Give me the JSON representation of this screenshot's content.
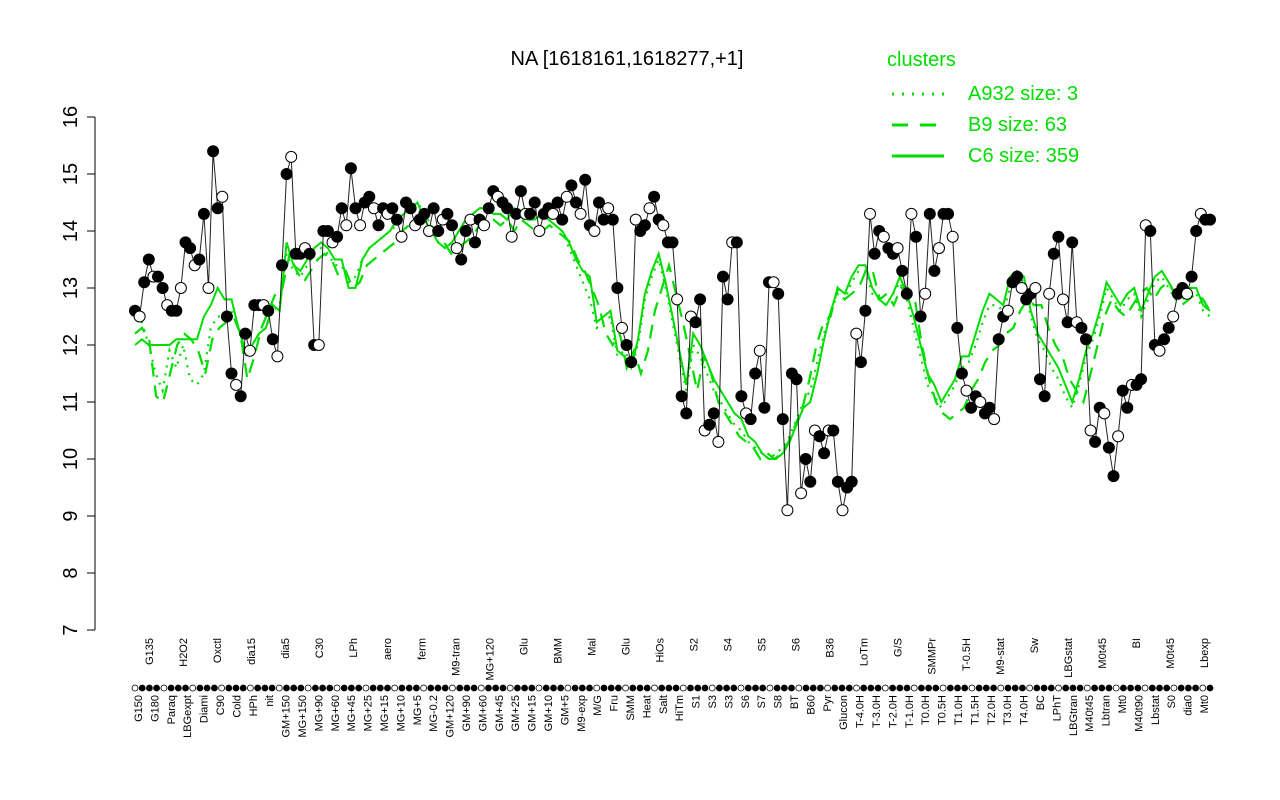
{
  "chart_data": {
    "type": "line",
    "title": "NA [1618161,1618277,+1]",
    "xlabel": "",
    "ylabel": "",
    "ylim": [
      7,
      16
    ],
    "yticks": [
      7,
      8,
      9,
      10,
      11,
      12,
      13,
      14,
      15,
      16
    ],
    "grid": false,
    "legend_position": "top-right",
    "legend": {
      "title": "clusters",
      "entries": [
        {
          "label": "A932 size: 3",
          "style": "dotted"
        },
        {
          "label": "B9 size: 63",
          "style": "dashed"
        },
        {
          "label": "C6 size: 359",
          "style": "solid"
        }
      ]
    },
    "x_tick_labels_bottom": [
      "G150",
      "G180",
      "Paraq",
      "LBGexpt",
      "Diami",
      "C90",
      "Cold",
      "HPh",
      "nit",
      "GM+150",
      "MG+150",
      "MG+90",
      "MG+60",
      "MG+45",
      "MG+25",
      "MG+15",
      "MG+10",
      "MG+5",
      "MG-0.2",
      "GM+120",
      "GM+90",
      "GM+60",
      "GM+45",
      "GM+25",
      "GM+15",
      "GM+10",
      "GM+5",
      "M9-exp",
      "M/G",
      "Fru",
      "SMM",
      "Heat",
      "Salt",
      "HiTm",
      "S1",
      "S3",
      "S3",
      "S6",
      "S7",
      "S8",
      "BT",
      "B60",
      "Pyr",
      "Glucon",
      "T-4.0H",
      "T-3.0H",
      "T-2.0H",
      "T-1.0H",
      "T0.0H",
      "T0.5H",
      "T1.0H",
      "T1.5H",
      "T2.0H",
      "T3.0H",
      "T4.0H",
      "BC",
      "LPhT",
      "LBGtran",
      "M40t45",
      "Lbtran",
      "Mt0",
      "M40t90",
      "Lbstat",
      "S0",
      "dia0",
      "Mt0"
    ],
    "x_tick_labels_top": [
      "G135",
      "H2O2",
      "Oxctl",
      "dia15",
      "dia5",
      "C30",
      "LPh",
      "aero",
      "ferm",
      "M9-tran",
      "MG+120",
      "Glu",
      "BMM",
      "Mal",
      "Glu",
      "HiOs",
      "S2",
      "S4",
      "S5",
      "S6",
      "B36",
      "LoTm",
      "G/S",
      "SMMPr",
      "T-0.5H",
      "M9-stat",
      "Sw",
      "LBGstat",
      "M0t45",
      "BI",
      "M0t45",
      "Lbexp"
    ],
    "series": [
      {
        "name": "C6 size: 359",
        "style": "solid",
        "values": [
          12.0,
          12.1,
          12.0,
          12.0,
          12.0,
          12.0,
          12.1,
          12.1,
          12.1,
          12.1,
          12.5,
          12.7,
          13.0,
          12.8,
          12.8,
          12.3,
          11.9,
          12.0,
          12.2,
          12.3,
          12.7,
          12.6,
          13.8,
          13.4,
          13.3,
          13.5,
          13.7,
          13.8,
          13.7,
          13.5,
          13.5,
          13.0,
          13.0,
          13.5,
          13.7,
          13.8,
          13.9,
          14.0,
          14.2,
          14.3,
          14.4,
          14.5,
          14.2,
          14.0,
          13.8,
          13.7,
          13.8,
          14.0,
          14.2,
          14.3,
          14.4,
          14.4,
          14.3,
          14.3,
          14.2,
          14.4,
          14.3,
          14.2,
          14.2,
          14.3,
          14.2,
          14.1,
          14.0,
          13.8,
          13.5,
          13.3,
          13.2,
          12.4,
          12.5,
          12.6,
          11.9,
          11.8,
          11.6,
          12.1,
          12.9,
          13.3,
          13.6,
          13.1,
          12.5,
          11.9,
          11.3,
          12.2,
          12.0,
          11.7,
          11.4,
          11.2,
          11.0,
          10.8,
          10.7,
          10.4,
          10.3,
          10.1,
          10.0,
          10.0,
          10.1,
          10.3,
          10.6,
          10.9,
          11.0,
          11.5,
          12.1,
          12.6,
          13.0,
          12.9,
          13.2,
          13.4,
          13.4,
          13.0,
          12.8,
          12.7,
          12.9,
          13.2,
          12.9,
          12.5,
          12.0,
          11.5,
          11.3,
          11.0,
          11.2,
          11.4,
          11.8,
          11.8,
          12.2,
          12.6,
          12.9,
          12.8,
          12.7,
          13.2,
          13.3,
          13.2,
          12.6,
          12.2,
          12.0,
          11.8,
          11.6,
          11.3,
          11.0,
          11.4,
          11.9,
          12.2,
          12.6,
          13.1,
          12.9,
          12.7,
          12.9,
          13.0,
          12.6,
          12.9,
          13.2,
          13.3,
          13.1,
          12.9,
          12.9,
          13.0,
          13.0,
          12.7,
          12.6
        ],
        "color": "#00dd00"
      },
      {
        "name": "B9 size: 63",
        "style": "dashed",
        "values": [
          12.2,
          12.3,
          12.1,
          11.1,
          11.0,
          11.5,
          12.0,
          12.2,
          12.1,
          11.9,
          11.5,
          12.1,
          12.3,
          12.4,
          12.5,
          12.2,
          11.4,
          11.8,
          12.3,
          12.6,
          12.9,
          13.0,
          13.6,
          13.3,
          13.1,
          13.3,
          13.5,
          13.6,
          13.5,
          13.2,
          13.3,
          13.0,
          13.1,
          13.4,
          13.5,
          13.6,
          13.7,
          13.8,
          14.0,
          14.1,
          14.2,
          14.3,
          14.1,
          14.0,
          13.8,
          13.6,
          13.7,
          13.8,
          13.9,
          14.1,
          14.2,
          14.2,
          14.1,
          14.2,
          14.0,
          14.2,
          14.1,
          14.0,
          14.0,
          14.1,
          14.0,
          13.9,
          13.8,
          13.5,
          13.3,
          13.0,
          12.7,
          12.2,
          12.0,
          12.2,
          11.6,
          11.9,
          11.5,
          11.9,
          12.6,
          13.0,
          13.4,
          12.9,
          12.4,
          11.8,
          11.2,
          11.8,
          11.5,
          11.0,
          10.8,
          10.6,
          10.4,
          10.3,
          10.2,
          10.0,
          10.1,
          10.0,
          10.1,
          10.3,
          10.6,
          10.9,
          11.4,
          12.0,
          12.4,
          12.5,
          13.0,
          12.8,
          12.9,
          13.0,
          13.3,
          13.3,
          12.8,
          12.9,
          12.7,
          13.0,
          13.0,
          12.8,
          12.0,
          11.4,
          11.0,
          10.8,
          10.7,
          10.8,
          10.9,
          11.2,
          11.4,
          11.7,
          11.9,
          12.0,
          12.2,
          12.3,
          12.6,
          12.8,
          12.7,
          12.7,
          12.3,
          12.0,
          11.8,
          11.4,
          11.2,
          11.0,
          11.5,
          12.0,
          12.5,
          12.8,
          12.6,
          12.5,
          12.7,
          12.9,
          13.0,
          12.8,
          13.0,
          13.1,
          12.9,
          12.7,
          12.8,
          12.9,
          12.8,
          12.6
        ],
        "color": "#00dd00"
      },
      {
        "name": "A932 size: 3",
        "style": "dotted",
        "values": [
          12.5,
          12.4,
          12.0,
          11.5,
          11.2,
          11.9,
          11.6,
          12.0,
          11.4,
          11.3,
          11.5,
          12.3,
          12.5,
          12.5,
          12.6,
          12.3,
          11.8,
          12.0,
          12.2,
          12.3,
          12.6,
          12.7,
          13.6,
          13.3,
          13.2,
          13.4,
          13.6,
          13.7,
          13.6,
          13.4,
          13.4,
          13.1,
          13.2,
          13.5,
          13.7,
          13.8,
          13.9,
          14.0,
          14.1,
          14.3,
          14.4,
          14.5,
          14.3,
          14.1,
          13.8,
          13.7,
          13.8,
          14.0,
          14.2,
          14.3,
          14.4,
          14.4,
          14.3,
          14.3,
          14.2,
          14.4,
          14.3,
          14.2,
          14.2,
          14.3,
          14.2,
          14.1,
          14.0,
          13.7,
          13.4,
          13.1,
          12.8,
          12.3,
          12.4,
          12.5,
          11.8,
          11.9,
          11.7,
          12.0,
          12.8,
          13.2,
          13.5,
          13.0,
          12.4,
          11.8,
          11.2,
          12.0,
          11.8,
          11.5,
          11.2,
          11.0,
          10.8,
          10.6,
          10.5,
          10.3,
          10.2,
          10.1,
          10.0,
          10.1,
          10.2,
          10.4,
          10.7,
          11.0,
          11.2,
          11.7,
          12.2,
          12.6,
          12.9,
          12.8,
          13.1,
          13.3,
          13.3,
          12.9,
          12.8,
          12.7,
          12.9,
          13.1,
          12.8,
          12.3,
          11.8,
          11.3,
          11.1,
          10.9,
          11.1,
          11.3,
          11.6,
          11.7,
          12.0,
          12.4,
          12.7,
          12.7,
          12.6,
          13.0,
          13.2,
          13.1,
          12.5,
          12.1,
          11.9,
          11.6,
          11.4,
          11.1,
          10.9,
          11.3,
          11.8,
          12.1,
          12.5,
          13.0,
          12.8,
          12.6,
          12.8,
          12.9,
          12.5,
          12.8,
          13.1,
          13.2,
          13.0,
          12.8,
          12.8,
          12.9,
          12.9,
          12.6,
          12.5
        ],
        "color": "#00dd00"
      },
      {
        "name": "",
        "style": "points",
        "values": [
          12.6,
          12.5,
          13.1,
          13.5,
          13.2,
          13.2,
          13.0,
          12.7,
          12.6,
          12.6,
          13.0,
          13.8,
          13.7,
          13.4,
          13.5,
          14.3,
          13.0,
          15.4,
          14.4,
          14.6,
          12.5,
          11.5,
          11.3,
          11.1,
          12.2,
          11.9,
          12.7,
          12.7,
          12.7,
          12.6,
          12.1,
          11.8,
          13.4,
          15.0,
          15.3,
          13.6,
          13.6,
          13.7,
          13.6,
          12.0,
          12.0,
          14.0,
          14.0,
          13.8,
          13.9,
          14.4,
          14.1,
          15.1,
          14.4,
          14.1,
          14.5,
          14.6,
          14.4,
          14.1,
          14.4,
          14.3,
          14.4,
          14.2,
          13.9,
          14.5,
          14.4,
          14.1,
          14.2,
          14.3,
          14.0,
          14.4,
          14.0,
          14.2,
          14.3,
          14.1,
          13.7,
          13.5,
          14.0,
          14.2,
          13.8,
          14.2,
          14.1,
          14.4,
          14.7,
          14.6,
          14.5,
          14.4,
          13.9,
          14.3,
          14.7,
          14.3,
          14.3,
          14.5,
          14.0,
          14.3,
          14.4,
          14.3,
          14.5,
          14.2,
          14.6,
          14.8,
          14.5,
          14.3,
          14.9,
          14.1,
          14.0,
          14.5,
          14.2,
          14.4,
          14.2,
          13.0,
          12.3,
          12.0,
          11.7,
          14.2,
          14.0,
          14.1,
          14.4,
          14.6,
          14.2,
          14.1,
          13.8,
          13.8,
          12.8,
          11.1,
          10.8,
          12.5,
          12.4,
          12.8,
          10.5,
          10.6,
          10.8,
          10.3,
          13.2,
          12.8,
          13.8,
          13.8,
          11.1,
          10.8,
          10.7,
          11.5,
          11.9,
          10.9,
          13.1,
          13.1,
          12.9,
          10.7,
          9.1,
          11.5,
          11.4,
          9.4,
          10.0,
          9.6,
          10.5,
          10.4,
          10.1,
          10.5,
          10.5,
          9.6,
          9.1,
          9.5,
          9.6,
          12.2,
          11.7,
          12.6,
          14.3,
          13.6,
          14.0,
          13.9,
          13.7,
          13.6,
          13.7,
          13.3,
          12.9,
          14.3,
          13.9,
          12.5,
          12.9,
          14.3,
          13.3,
          13.7,
          14.3,
          14.3,
          13.9,
          12.3,
          11.5,
          11.2,
          10.9,
          11.1,
          11.0,
          10.8,
          10.9,
          10.7,
          12.1,
          12.5,
          12.6,
          13.1,
          13.2,
          13.0,
          12.8,
          12.9,
          13.0,
          11.4,
          11.1,
          12.9,
          13.6,
          13.9,
          12.8,
          12.4,
          13.8,
          12.4,
          12.3,
          12.1,
          10.5,
          10.3,
          10.9,
          10.8,
          10.2,
          9.7,
          10.4,
          11.2,
          10.9,
          11.3,
          11.3,
          11.4,
          14.1,
          14.0,
          12.0,
          11.9,
          12.1,
          12.3,
          12.5,
          12.9,
          13.0,
          12.9,
          13.2,
          14.0,
          14.3,
          14.2,
          14.2
        ]
      }
    ]
  }
}
